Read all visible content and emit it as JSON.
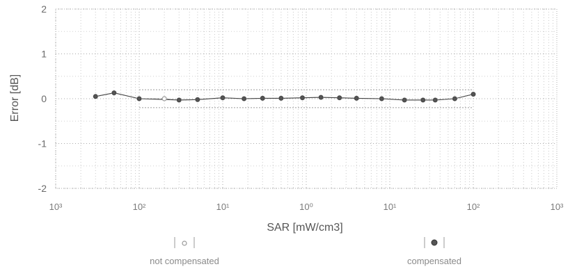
{
  "chart_data": {
    "type": "scatter",
    "xlabel": "SAR [mW/cm3]",
    "ylabel": "Error [dB]",
    "xscale": "log",
    "xlim": [
      0.001,
      1000
    ],
    "ylim": [
      -2,
      2
    ],
    "grid": true,
    "x_tick_labels": [
      "10³",
      "10²",
      "10¹",
      "10⁰",
      "10¹",
      "10²",
      "10³"
    ],
    "y_tick_labels": [
      "2",
      "1",
      "0",
      "-1",
      "-2"
    ],
    "legend_position": "bottom",
    "series": [
      {
        "name": "not compensated",
        "x": [
          0.003,
          0.005,
          0.01,
          0.02,
          0.03,
          0.05,
          0.1,
          0.18,
          0.3,
          0.5,
          0.9,
          1.5,
          2.5,
          4,
          8,
          15,
          25,
          35,
          60,
          100
        ],
        "y": [
          0.05,
          0.13,
          0.0,
          0.0,
          -0.03,
          -0.02,
          0.02,
          0.0,
          0.01,
          0.01,
          0.02,
          0.03,
          0.02,
          0.01,
          0.0,
          -0.03,
          -0.03,
          -0.03,
          0.0,
          0.1
        ],
        "color": "#999999"
      },
      {
        "name": "compensated",
        "x": [
          0.003,
          0.005,
          0.01,
          0.03,
          0.05,
          0.1,
          0.18,
          0.3,
          0.5,
          0.9,
          1.5,
          2.5,
          4,
          8,
          15,
          25,
          35,
          60,
          100
        ],
        "y": [
          0.05,
          0.13,
          0.0,
          -0.03,
          -0.02,
          0.02,
          0.0,
          0.01,
          0.01,
          0.02,
          0.03,
          0.02,
          0.01,
          0.0,
          -0.03,
          -0.03,
          -0.03,
          0.0,
          0.1
        ],
        "color": "#444444"
      }
    ]
  }
}
